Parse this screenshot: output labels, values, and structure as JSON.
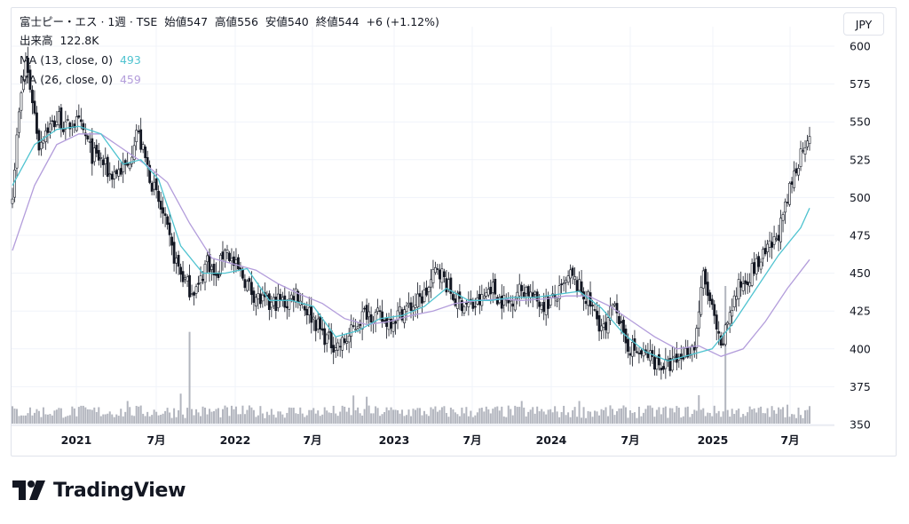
{
  "header": {
    "title": "富士ピー・エス · 1週 · TSE",
    "open_label": "始値",
    "open": "547",
    "high_label": "高値",
    "high": "556",
    "low_label": "安値",
    "low": "540",
    "close_label": "終値",
    "close": "544",
    "change": "+6 (+1.12%)",
    "volume_label": "出来高",
    "volume": "122.8K",
    "ma13_label": "MA (13, close, 0)",
    "ma13_value": "493",
    "ma26_label": "MA (26, close, 0)",
    "ma26_value": "459",
    "currency": "JPY"
  },
  "logo": {
    "text": "TradingView",
    "icon": "tradingview-logo-icon"
  },
  "colors": {
    "ma13": "#4fc3d0",
    "ma26": "#b39ddb",
    "candle": "#131722",
    "volume": "#b2b5be"
  },
  "chart_data": {
    "type": "candlestick",
    "ylim": [
      350,
      605
    ],
    "yticks": [
      350,
      375,
      400,
      425,
      450,
      475,
      500,
      525,
      550,
      575,
      600
    ],
    "xticks": [
      "2021",
      "7月",
      "2022",
      "7月",
      "2023",
      "7月",
      "2024",
      "7月",
      "2025",
      "7月"
    ],
    "price_path": [
      [
        0,
        505
      ],
      [
        3,
        555
      ],
      [
        6,
        590
      ],
      [
        9,
        565
      ],
      [
        12,
        535
      ],
      [
        15,
        545
      ],
      [
        18,
        548
      ],
      [
        21,
        553
      ],
      [
        24,
        545
      ],
      [
        27,
        550
      ],
      [
        30,
        548
      ],
      [
        33,
        540
      ],
      [
        36,
        528
      ],
      [
        40,
        525
      ],
      [
        44,
        515
      ],
      [
        48,
        518
      ],
      [
        52,
        520
      ],
      [
        56,
        545
      ],
      [
        60,
        525
      ],
      [
        64,
        505
      ],
      [
        68,
        488
      ],
      [
        72,
        465
      ],
      [
        76,
        450
      ],
      [
        80,
        440
      ],
      [
        84,
        440
      ],
      [
        88,
        460
      ],
      [
        92,
        445
      ],
      [
        96,
        468
      ],
      [
        100,
        455
      ],
      [
        104,
        448
      ],
      [
        108,
        438
      ],
      [
        112,
        432
      ],
      [
        116,
        428
      ],
      [
        120,
        432
      ],
      [
        124,
        430
      ],
      [
        128,
        438
      ],
      [
        132,
        428
      ],
      [
        136,
        420
      ],
      [
        140,
        410
      ],
      [
        144,
        404
      ],
      [
        148,
        402
      ],
      [
        152,
        408
      ],
      [
        156,
        418
      ],
      [
        160,
        425
      ],
      [
        164,
        422
      ],
      [
        168,
        418
      ],
      [
        172,
        420
      ],
      [
        176,
        425
      ],
      [
        180,
        428
      ],
      [
        184,
        432
      ],
      [
        188,
        440
      ],
      [
        192,
        455
      ],
      [
        196,
        443
      ],
      [
        200,
        432
      ],
      [
        204,
        430
      ],
      [
        208,
        428
      ],
      [
        212,
        432
      ],
      [
        216,
        442
      ],
      [
        220,
        433
      ],
      [
        224,
        430
      ],
      [
        228,
        438
      ],
      [
        232,
        440
      ],
      [
        236,
        432
      ],
      [
        240,
        430
      ],
      [
        244,
        432
      ],
      [
        248,
        438
      ],
      [
        252,
        448
      ],
      [
        256,
        440
      ],
      [
        260,
        432
      ],
      [
        264,
        420
      ],
      [
        268,
        410
      ],
      [
        272,
        435
      ],
      [
        276,
        405
      ],
      [
        280,
        400
      ],
      [
        284,
        396
      ],
      [
        288,
        395
      ],
      [
        292,
        390
      ],
      [
        296,
        388
      ],
      [
        300,
        392
      ],
      [
        304,
        398
      ],
      [
        308,
        402
      ],
      [
        312,
        448
      ],
      [
        316,
        425
      ],
      [
        320,
        398
      ],
      [
        324,
        425
      ],
      [
        328,
        440
      ],
      [
        332,
        448
      ],
      [
        336,
        455
      ],
      [
        340,
        462
      ],
      [
        344,
        470
      ],
      [
        348,
        485
      ],
      [
        352,
        510
      ],
      [
        356,
        530
      ],
      [
        360,
        545
      ]
    ],
    "ma13_path": [
      [
        0,
        508
      ],
      [
        10,
        535
      ],
      [
        20,
        545
      ],
      [
        30,
        547
      ],
      [
        40,
        542
      ],
      [
        50,
        522
      ],
      [
        58,
        525
      ],
      [
        66,
        512
      ],
      [
        76,
        468
      ],
      [
        86,
        450
      ],
      [
        96,
        450
      ],
      [
        106,
        453
      ],
      [
        116,
        432
      ],
      [
        126,
        432
      ],
      [
        136,
        428
      ],
      [
        146,
        408
      ],
      [
        156,
        412
      ],
      [
        166,
        420
      ],
      [
        176,
        422
      ],
      [
        186,
        428
      ],
      [
        196,
        440
      ],
      [
        206,
        432
      ],
      [
        216,
        432
      ],
      [
        226,
        434
      ],
      [
        236,
        434
      ],
      [
        246,
        436
      ],
      [
        256,
        438
      ],
      [
        266,
        427
      ],
      [
        276,
        410
      ],
      [
        286,
        398
      ],
      [
        296,
        392
      ],
      [
        306,
        396
      ],
      [
        316,
        400
      ],
      [
        326,
        418
      ],
      [
        336,
        440
      ],
      [
        346,
        462
      ],
      [
        356,
        480
      ],
      [
        360,
        493
      ]
    ],
    "ma26_path": [
      [
        0,
        465
      ],
      [
        10,
        508
      ],
      [
        20,
        535
      ],
      [
        30,
        542
      ],
      [
        40,
        542
      ],
      [
        50,
        532
      ],
      [
        60,
        522
      ],
      [
        70,
        510
      ],
      [
        80,
        483
      ],
      [
        90,
        460
      ],
      [
        100,
        456
      ],
      [
        110,
        452
      ],
      [
        120,
        443
      ],
      [
        130,
        436
      ],
      [
        140,
        430
      ],
      [
        150,
        420
      ],
      [
        160,
        416
      ],
      [
        170,
        418
      ],
      [
        180,
        422
      ],
      [
        190,
        425
      ],
      [
        200,
        430
      ],
      [
        210,
        432
      ],
      [
        220,
        433
      ],
      [
        230,
        432
      ],
      [
        240,
        433
      ],
      [
        250,
        435
      ],
      [
        260,
        435
      ],
      [
        270,
        428
      ],
      [
        280,
        418
      ],
      [
        290,
        408
      ],
      [
        300,
        400
      ],
      [
        310,
        402
      ],
      [
        320,
        395
      ],
      [
        330,
        400
      ],
      [
        340,
        418
      ],
      [
        350,
        440
      ],
      [
        360,
        459
      ]
    ],
    "volume_spikes": [
      [
        76,
        98
      ],
      [
        80,
        300
      ],
      [
        52,
        74
      ],
      [
        154,
        92
      ],
      [
        160,
        88
      ],
      [
        230,
        74
      ],
      [
        310,
        93
      ],
      [
        322,
        450
      ],
      [
        256,
        74
      ],
      [
        350,
        62
      ]
    ],
    "volume_max": 450
  }
}
